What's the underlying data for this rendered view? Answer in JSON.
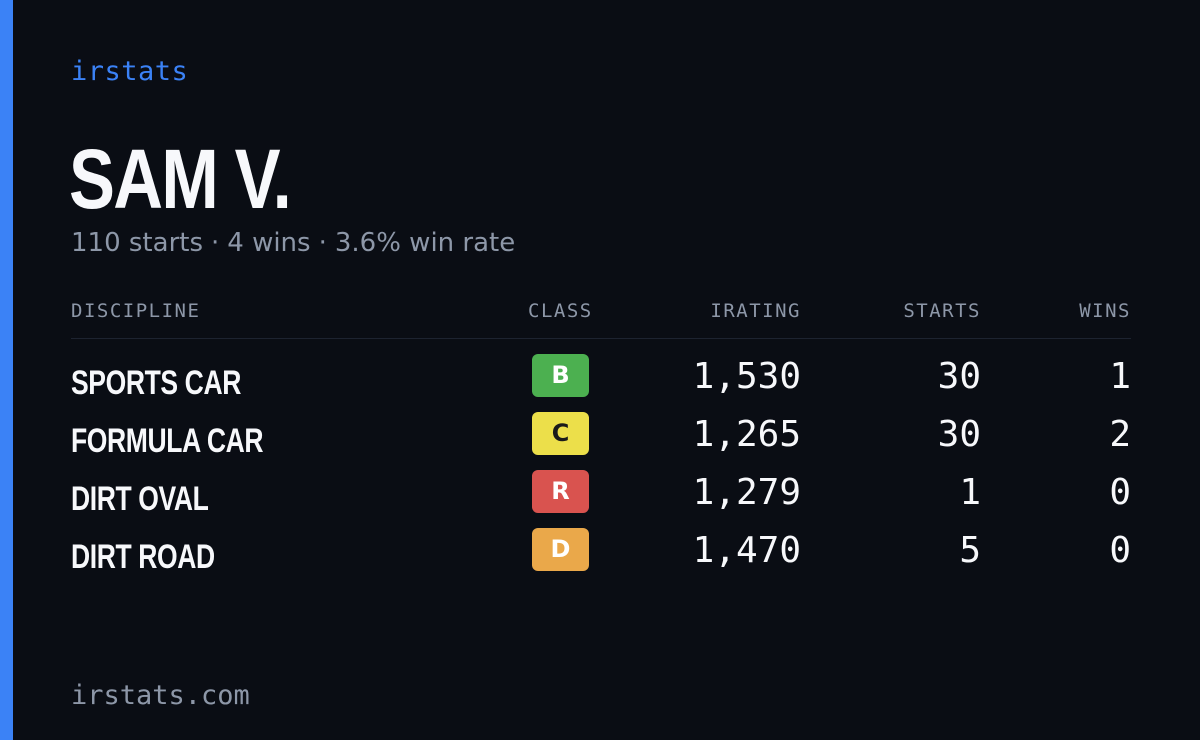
{
  "brand": "irstats",
  "driver": {
    "name": "SAM V.",
    "starts_text": "110 starts",
    "wins_text": "4 wins",
    "winrate_text": "3.6% win rate",
    "separator": "·"
  },
  "table": {
    "headers": {
      "discipline": "DISCIPLINE",
      "class": "CLASS",
      "irating": "IRATING",
      "starts": "STARTS",
      "wins": "WINS"
    },
    "rows": [
      {
        "discipline": "SPORTS CAR",
        "class": "B",
        "class_color": "#4cb050",
        "class_text_color": "#ffffff",
        "irating": "1,530",
        "starts": "30",
        "wins": "1"
      },
      {
        "discipline": "FORMULA CAR",
        "class": "C",
        "class_color": "#ecdf4a",
        "class_text_color": "#1a1a1a",
        "irating": "1,265",
        "starts": "30",
        "wins": "2"
      },
      {
        "discipline": "DIRT OVAL",
        "class": "R",
        "class_color": "#d9534f",
        "class_text_color": "#ffffff",
        "irating": "1,279",
        "starts": "1",
        "wins": "0"
      },
      {
        "discipline": "DIRT ROAD",
        "class": "D",
        "class_color": "#eaa84a",
        "class_text_color": "#ffffff",
        "irating": "1,470",
        "starts": "5",
        "wins": "0"
      }
    ]
  },
  "footer": {
    "url": "irstats.com"
  },
  "colors": {
    "background": "#0a0d14",
    "accent": "#3b82f6",
    "text_primary": "#f7f8fb",
    "text_muted": "#8d97a8"
  }
}
